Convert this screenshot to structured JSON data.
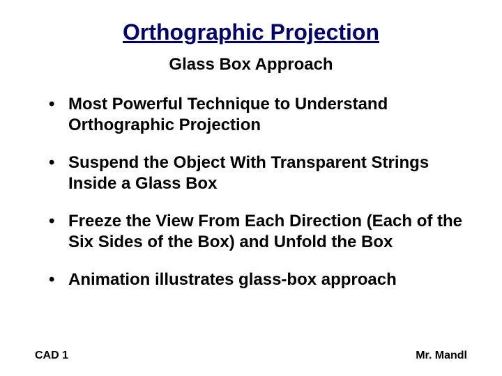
{
  "title": {
    "text": "Orthographic Projection",
    "color": "#000066",
    "fontsize": 32
  },
  "subtitle": {
    "text": "Glass Box Approach",
    "color": "#000000",
    "fontsize": 24
  },
  "bullets": {
    "items": [
      "Most Powerful Technique to Understand Orthographic Projection",
      "Suspend the Object With Transparent Strings Inside a Glass Box",
      "Freeze the View From Each Direction (Each of the Six Sides of the Box) and Unfold the Box",
      "Animation illustrates glass-box approach"
    ],
    "color": "#000000",
    "fontsize": 24
  },
  "footer": {
    "left": "CAD 1",
    "right": "Mr. Mandl",
    "color": "#000000",
    "fontsize": 16
  },
  "background_color": "#ffffff"
}
